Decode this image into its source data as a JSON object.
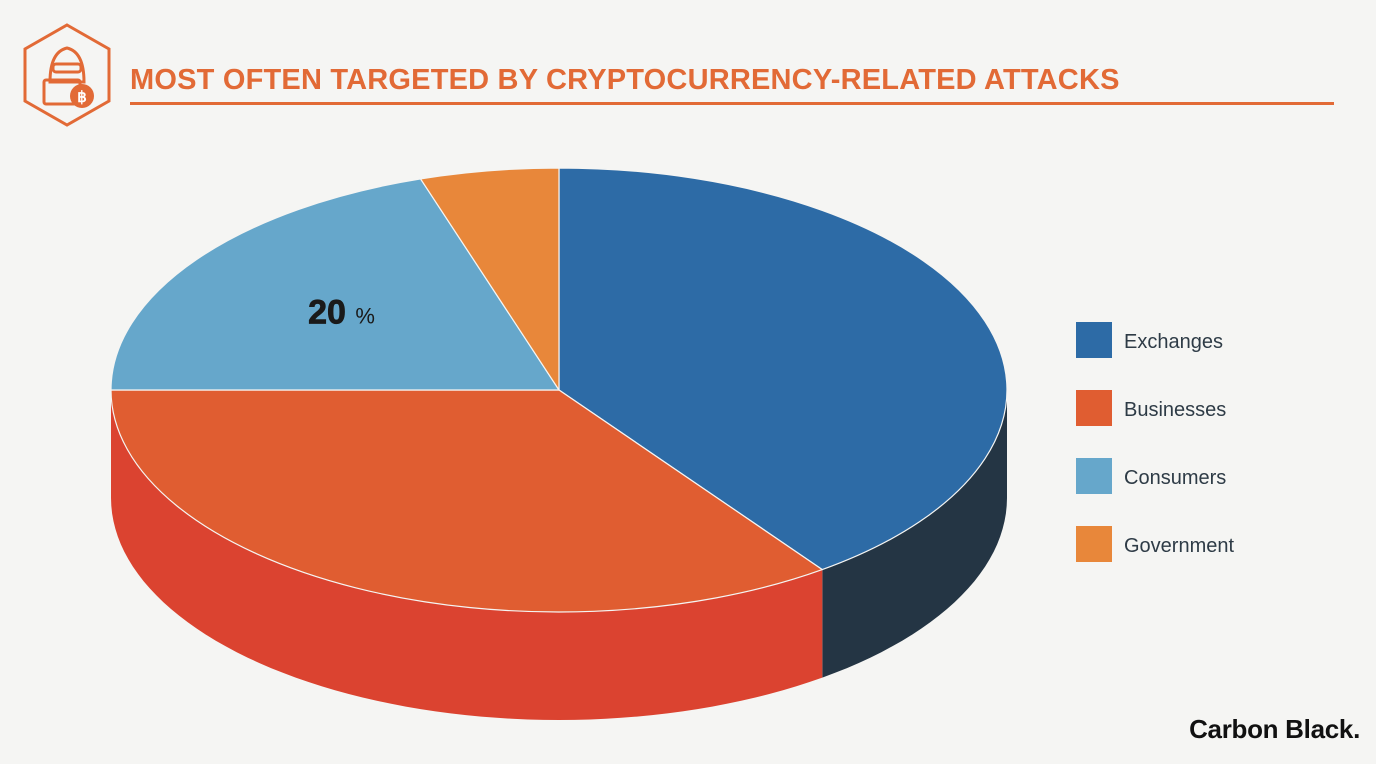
{
  "header": {
    "title": "MOST OFTEN TARGETED BY CRYPTOCURRENCY-RELATED ATTACKS",
    "logo_icon": "hacker-bitcoin-icon"
  },
  "chart_data": {
    "type": "pie",
    "title": "MOST OFTEN TARGETED BY CRYPTOCURRENCY-RELATED ATTACKS",
    "categories": [
      "Exchanges",
      "Businesses",
      "Consumers",
      "Government"
    ],
    "values": [
      40,
      35,
      20,
      5
    ],
    "unit": "%",
    "colors": [
      "#2d6ba6",
      "#e05d31",
      "#66a7cb",
      "#e8873a"
    ],
    "side_colors": [
      "#243544",
      "#db4330",
      "#4f87a8",
      "#c96e2c"
    ],
    "data_labels": [
      {
        "category": "Consumers",
        "text": "20",
        "suffix": "%"
      }
    ],
    "legend_position": "right",
    "style": "3d"
  },
  "brand": {
    "text": "Carbon Black."
  }
}
